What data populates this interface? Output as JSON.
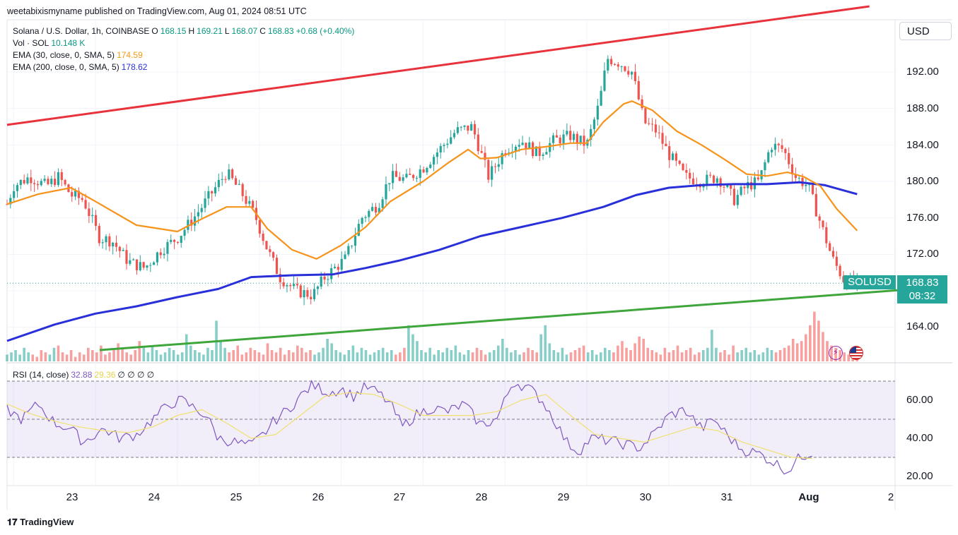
{
  "header": {
    "published_text": "weetabixismyname published on TradingView.com, Aug 01, 2024 08:51 UTC"
  },
  "legend": {
    "symbol_title": "Solana / U.S. Dollar, 1h, COINBASE",
    "open_label": "O",
    "open": "168.15",
    "high_label": "H",
    "high": "169.21",
    "low_label": "L",
    "low": "168.07",
    "close_label": "C",
    "close": "168.83",
    "change": "+0.68 (+0.40%)",
    "volume_title": "Vol · SOL",
    "volume_value": "10.148 K",
    "ema30_title": "EMA (30, close, 0, SMA, 5)",
    "ema30_value": "174.59",
    "ema200_title": "EMA (200, close, 0, SMA, 5)",
    "ema200_value": "178.62",
    "rsi_title": "RSI (14, close)",
    "rsi_value": "32.88",
    "rsi_ma_value": "29.36",
    "rsi_extra": "∅ ∅ ∅ ∅"
  },
  "currency": "USD",
  "price_axis": [
    "192.00",
    "188.00",
    "184.00",
    "180.00",
    "176.00",
    "172.00",
    "164.00"
  ],
  "rsi_axis": [
    "60.00",
    "40.00",
    "20.00"
  ],
  "date_axis": [
    "23",
    "24",
    "25",
    "26",
    "27",
    "28",
    "29",
    "30",
    "31",
    "Aug",
    "2"
  ],
  "current": {
    "symbol": "SOLUSD",
    "price": "168.83",
    "countdown": "08:32"
  },
  "footer": {
    "brand": "TradingView"
  },
  "colors": {
    "up": "#26a69a",
    "down": "#ef5350",
    "ema30": "#f7931a",
    "ema200": "#2930d9",
    "resistance": "#e8323c",
    "support": "#3ea63a",
    "rsi": "#7e57c2",
    "rsi_ma": "#f0e070"
  },
  "icons": [
    "lightning-icon",
    "us-flag-icon",
    "tradingview-logo-icon"
  ],
  "chart_data": {
    "type": "candlestick",
    "title": "Solana / U.S. Dollar, 1h, COINBASE",
    "ylim": [
      161.5,
      197.5
    ],
    "x_domain": [
      "22 Jul 18:00",
      "02 Aug 00:00"
    ],
    "days": [
      "23",
      "24",
      "25",
      "26",
      "27",
      "28",
      "29",
      "30",
      "31",
      "Aug"
    ],
    "price_path": [
      [
        22.92,
        177.5
      ],
      [
        23.0,
        179.5
      ],
      [
        23.2,
        180.5
      ],
      [
        23.4,
        179.5
      ],
      [
        23.55,
        180.5
      ],
      [
        23.7,
        178.5
      ],
      [
        23.85,
        178.0
      ],
      [
        24.05,
        173.8
      ],
      [
        24.2,
        173.5
      ],
      [
        24.4,
        171.2
      ],
      [
        24.6,
        170.5
      ],
      [
        24.8,
        172.5
      ],
      [
        25.0,
        173.8
      ],
      [
        25.2,
        176.0
      ],
      [
        25.4,
        178.5
      ],
      [
        25.6,
        181.0
      ],
      [
        25.8,
        178.5
      ],
      [
        25.95,
        176.2
      ],
      [
        26.1,
        172.5
      ],
      [
        26.25,
        169.5
      ],
      [
        26.45,
        168.0
      ],
      [
        26.65,
        167.5
      ],
      [
        26.8,
        169.5
      ],
      [
        27.05,
        171.5
      ],
      [
        27.25,
        176.0
      ],
      [
        27.45,
        177.5
      ],
      [
        27.6,
        180.5
      ],
      [
        27.8,
        180.2
      ],
      [
        28.0,
        181.5
      ],
      [
        28.2,
        183.5
      ],
      [
        28.4,
        185.5
      ],
      [
        28.6,
        186.0
      ],
      [
        28.8,
        180.5
      ],
      [
        29.0,
        183.5
      ],
      [
        29.2,
        184.5
      ],
      [
        29.4,
        183.0
      ],
      [
        29.6,
        184.5
      ],
      [
        29.8,
        185.0
      ],
      [
        30.0,
        184.0
      ],
      [
        30.15,
        188.5
      ],
      [
        30.25,
        193.5
      ],
      [
        30.4,
        193.0
      ],
      [
        30.55,
        192.0
      ],
      [
        30.7,
        186.5
      ],
      [
        30.85,
        185.5
      ],
      [
        31.0,
        183.0
      ],
      [
        31.2,
        180.5
      ],
      [
        31.4,
        180.0
      ],
      [
        31.6,
        180.5
      ],
      [
        31.8,
        178.0
      ],
      [
        31.95,
        179.5
      ],
      [
        32.1,
        180.0
      ],
      [
        32.25,
        184.0
      ],
      [
        32.4,
        183.5
      ],
      [
        32.55,
        180.5
      ],
      [
        32.7,
        179.5
      ],
      [
        32.85,
        175.5
      ],
      [
        33.0,
        171.5
      ],
      [
        33.15,
        169.0
      ],
      [
        33.3,
        168.83
      ]
    ],
    "ema30": [
      [
        22.92,
        177.5
      ],
      [
        23.3,
        178.6
      ],
      [
        23.7,
        179.3
      ],
      [
        24.0,
        177.8
      ],
      [
        24.5,
        175.2
      ],
      [
        25.0,
        174.5
      ],
      [
        25.3,
        175.9
      ],
      [
        25.6,
        177.2
      ],
      [
        25.9,
        177.2
      ],
      [
        26.1,
        174.8
      ],
      [
        26.4,
        172.5
      ],
      [
        26.7,
        171.5
      ],
      [
        27.0,
        173.0
      ],
      [
        27.3,
        175.0
      ],
      [
        27.6,
        177.8
      ],
      [
        28.0,
        180.0
      ],
      [
        28.3,
        182.0
      ],
      [
        28.55,
        183.5
      ],
      [
        28.7,
        182.5
      ],
      [
        28.9,
        182.6
      ],
      [
        29.2,
        183.5
      ],
      [
        29.5,
        183.8
      ],
      [
        29.8,
        184.2
      ],
      [
        30.0,
        184.2
      ],
      [
        30.2,
        186.5
      ],
      [
        30.45,
        188.5
      ],
      [
        30.55,
        188.8
      ],
      [
        30.8,
        187.8
      ],
      [
        31.1,
        185.5
      ],
      [
        31.4,
        184.0
      ],
      [
        31.7,
        182.3
      ],
      [
        31.95,
        180.8
      ],
      [
        32.2,
        180.6
      ],
      [
        32.45,
        181.0
      ],
      [
        32.65,
        180.5
      ],
      [
        32.85,
        179.5
      ],
      [
        33.05,
        177.0
      ],
      [
        33.3,
        174.6
      ]
    ],
    "ema200": [
      [
        22.92,
        162.5
      ],
      [
        23.5,
        164.3
      ],
      [
        24.0,
        165.5
      ],
      [
        24.5,
        166.3
      ],
      [
        25.0,
        167.3
      ],
      [
        25.5,
        168.2
      ],
      [
        25.9,
        169.5
      ],
      [
        26.4,
        169.7
      ],
      [
        26.9,
        169.8
      ],
      [
        27.3,
        170.5
      ],
      [
        27.7,
        171.3
      ],
      [
        28.2,
        172.5
      ],
      [
        28.7,
        174.0
      ],
      [
        29.2,
        175.0
      ],
      [
        29.7,
        176.0
      ],
      [
        30.2,
        177.2
      ],
      [
        30.6,
        178.5
      ],
      [
        31.0,
        179.3
      ],
      [
        31.4,
        179.6
      ],
      [
        31.8,
        179.7
      ],
      [
        32.2,
        179.7
      ],
      [
        32.6,
        179.9
      ],
      [
        32.9,
        179.6
      ],
      [
        33.3,
        178.6
      ]
    ],
    "resistance_line": [
      [
        22.92,
        186.2
      ],
      [
        33.45,
        199.2
      ]
    ],
    "support_line": [
      [
        24.05,
        161.5
      ],
      [
        33.85,
        168.1
      ]
    ],
    "rsi": {
      "levels": [
        70,
        50,
        30
      ],
      "ylim": [
        17,
        73
      ],
      "path": [
        [
          22.92,
          55
        ],
        [
          23.1,
          50
        ],
        [
          23.3,
          58
        ],
        [
          23.5,
          48
        ],
        [
          23.7,
          45
        ],
        [
          23.85,
          38
        ],
        [
          24.1,
          45
        ],
        [
          24.3,
          40
        ],
        [
          24.5,
          42
        ],
        [
          24.7,
          50
        ],
        [
          24.9,
          58
        ],
        [
          25.05,
          60
        ],
        [
          25.2,
          56
        ],
        [
          25.35,
          52
        ],
        [
          25.5,
          40
        ],
        [
          25.7,
          38
        ],
        [
          25.9,
          36
        ],
        [
          26.05,
          42
        ],
        [
          26.2,
          50
        ],
        [
          26.35,
          55
        ],
        [
          26.5,
          62
        ],
        [
          26.65,
          68
        ],
        [
          26.85,
          64
        ],
        [
          27.0,
          66
        ],
        [
          27.15,
          62
        ],
        [
          27.3,
          67
        ],
        [
          27.45,
          64
        ],
        [
          27.6,
          58
        ],
        [
          27.75,
          46
        ],
        [
          27.9,
          52
        ],
        [
          28.1,
          56
        ],
        [
          28.3,
          54
        ],
        [
          28.5,
          58
        ],
        [
          28.7,
          47
        ],
        [
          28.9,
          50
        ],
        [
          29.1,
          70
        ],
        [
          29.3,
          66
        ],
        [
          29.45,
          60
        ],
        [
          29.6,
          50
        ],
        [
          29.75,
          38
        ],
        [
          29.9,
          33
        ],
        [
          30.05,
          40
        ],
        [
          30.25,
          39
        ],
        [
          30.45,
          37
        ],
        [
          30.65,
          35
        ],
        [
          30.85,
          44
        ],
        [
          31.0,
          52
        ],
        [
          31.2,
          55
        ],
        [
          31.4,
          45
        ],
        [
          31.55,
          50
        ],
        [
          31.75,
          40
        ],
        [
          31.9,
          34
        ],
        [
          32.1,
          32
        ],
        [
          32.3,
          27
        ],
        [
          32.45,
          23
        ],
        [
          32.6,
          30
        ],
        [
          32.75,
          32.9
        ]
      ],
      "ma": [
        [
          22.92,
          58
        ],
        [
          23.2,
          53
        ],
        [
          23.5,
          49
        ],
        [
          23.8,
          46
        ],
        [
          24.1,
          44
        ],
        [
          24.4,
          43
        ],
        [
          24.7,
          46
        ],
        [
          25.0,
          52
        ],
        [
          25.3,
          55
        ],
        [
          25.6,
          48
        ],
        [
          25.9,
          40
        ],
        [
          26.2,
          42
        ],
        [
          26.5,
          52
        ],
        [
          26.8,
          62
        ],
        [
          27.1,
          64
        ],
        [
          27.4,
          63
        ],
        [
          27.7,
          58
        ],
        [
          28.0,
          52
        ],
        [
          28.3,
          52
        ],
        [
          28.6,
          52
        ],
        [
          28.9,
          54
        ],
        [
          29.2,
          60
        ],
        [
          29.5,
          63
        ],
        [
          29.8,
          52
        ],
        [
          30.1,
          42
        ],
        [
          30.4,
          40
        ],
        [
          30.7,
          38
        ],
        [
          31.0,
          42
        ],
        [
          31.3,
          46
        ],
        [
          31.6,
          44
        ],
        [
          31.9,
          38
        ],
        [
          32.2,
          34
        ],
        [
          32.5,
          30
        ],
        [
          32.75,
          29.4
        ]
      ]
    },
    "volume": {
      "ylim": [
        0,
        25
      ],
      "values": [
        3,
        4,
        5,
        3,
        6,
        4,
        3,
        2,
        5,
        4,
        3,
        6,
        7,
        4,
        3,
        5,
        2,
        4,
        3,
        6,
        5,
        4,
        7,
        3,
        4,
        5,
        8,
        6,
        4,
        3,
        5,
        9,
        6,
        4,
        7,
        5,
        3,
        4,
        6,
        5,
        3,
        4,
        12,
        7,
        5,
        4,
        3,
        6,
        5,
        18,
        9,
        6,
        4,
        5,
        7,
        3,
        4,
        6,
        5,
        4,
        3,
        8,
        5,
        4,
        6,
        3,
        5,
        4,
        7,
        6,
        4,
        5,
        3,
        4,
        6,
        10,
        8,
        5,
        4,
        3,
        5,
        7,
        4,
        6,
        5,
        3,
        4,
        5,
        6,
        4,
        5,
        3,
        4,
        6,
        16,
        12,
        9,
        5,
        4,
        6,
        3,
        5,
        4,
        6,
        5,
        7,
        4,
        3,
        5,
        4,
        6,
        5,
        3,
        4,
        5,
        7,
        10,
        6,
        4,
        5,
        3,
        4,
        6,
        5,
        4,
        12,
        16,
        8,
        5,
        4,
        6,
        3,
        4,
        5,
        6,
        7,
        4,
        5,
        3,
        4,
        6,
        5,
        4,
        7,
        9,
        6,
        5,
        8,
        11,
        10,
        6,
        5,
        4,
        3,
        6,
        4,
        5,
        7,
        4,
        5,
        6,
        3,
        4,
        5,
        6,
        14,
        6,
        4,
        5,
        3,
        7,
        4,
        5,
        6,
        4,
        5,
        3,
        4,
        6,
        5,
        4,
        5,
        6,
        7,
        10,
        8,
        9,
        12,
        16,
        22,
        18,
        13,
        9,
        7,
        6,
        5,
        4,
        3,
        4,
        5
      ]
    }
  }
}
